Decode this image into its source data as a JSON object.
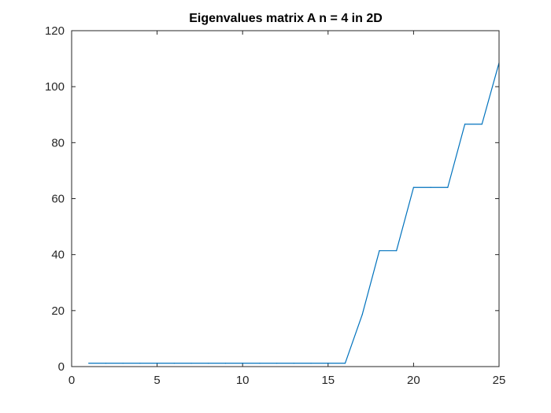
{
  "chart_data": {
    "type": "line",
    "title": "Eigenvalues matrix A n = 4 in 2D",
    "xlabel": "",
    "ylabel": "",
    "xlim": [
      0,
      25
    ],
    "ylim": [
      0,
      120
    ],
    "xticks": [
      0,
      5,
      10,
      15,
      20,
      25
    ],
    "yticks": [
      0,
      20,
      40,
      60,
      80,
      100,
      120
    ],
    "grid": false,
    "line_color": "#0072BD",
    "series": [
      {
        "x": [
          1,
          2,
          3,
          4,
          5,
          6,
          7,
          8,
          9,
          10,
          11,
          12,
          13,
          14,
          15,
          16,
          17,
          18,
          19,
          20,
          21,
          22,
          23,
          24,
          25
        ],
        "values": [
          1.2,
          1.2,
          1.2,
          1.2,
          1.2,
          1.2,
          1.2,
          1.2,
          1.2,
          1.2,
          1.2,
          1.2,
          1.2,
          1.2,
          1.2,
          1.2,
          18.6,
          41.4,
          41.4,
          64,
          64,
          64,
          86.6,
          86.6,
          108.5
        ]
      }
    ]
  }
}
